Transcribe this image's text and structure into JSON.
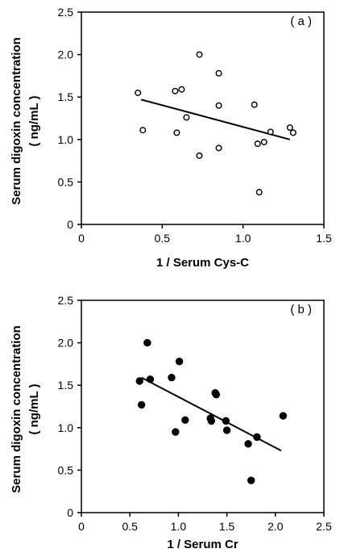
{
  "chart_data": [
    {
      "type": "scatter",
      "panel_label": "( a )",
      "xlabel": "1 / Serum Cys-C",
      "ylabel_line1": "Serum digoxin concentration",
      "ylabel_line2": "( ng/mL )",
      "xlim": [
        0,
        1.5
      ],
      "ylim": [
        0,
        2.5
      ],
      "xticks": [
        "0",
        "0.5",
        "1.0",
        "1.5"
      ],
      "yticks": [
        "0",
        "0.5",
        "1.0",
        "1.5",
        "2.0",
        "2.5"
      ],
      "marker": "open-circle",
      "points": [
        {
          "x": 0.35,
          "y": 1.55
        },
        {
          "x": 0.38,
          "y": 1.11
        },
        {
          "x": 0.58,
          "y": 1.57
        },
        {
          "x": 0.59,
          "y": 1.08
        },
        {
          "x": 0.62,
          "y": 1.59
        },
        {
          "x": 0.65,
          "y": 1.26
        },
        {
          "x": 0.73,
          "y": 2.0
        },
        {
          "x": 0.73,
          "y": 0.81
        },
        {
          "x": 0.85,
          "y": 1.78
        },
        {
          "x": 0.85,
          "y": 1.4
        },
        {
          "x": 0.85,
          "y": 0.9
        },
        {
          "x": 1.07,
          "y": 1.41
        },
        {
          "x": 1.09,
          "y": 0.95
        },
        {
          "x": 1.1,
          "y": 0.38
        },
        {
          "x": 1.13,
          "y": 0.97
        },
        {
          "x": 1.17,
          "y": 1.09
        },
        {
          "x": 1.29,
          "y": 1.14
        },
        {
          "x": 1.31,
          "y": 1.08
        }
      ],
      "fit_line": [
        {
          "x": 0.37,
          "y": 1.47
        },
        {
          "x": 1.29,
          "y": 1.0
        }
      ]
    },
    {
      "type": "scatter",
      "panel_label": "( b )",
      "xlabel": "1 / Serum Cr",
      "ylabel_line1": "Serum digoxin concentration",
      "ylabel_line2": "( ng/mL )",
      "xlim": [
        0,
        2.5
      ],
      "ylim": [
        0,
        2.5
      ],
      "xticks": [
        "0",
        "0.5",
        "1.0",
        "1.5",
        "2.0",
        "2.5"
      ],
      "yticks": [
        "0",
        "0.5",
        "1.0",
        "1.5",
        "2.0",
        "2.5"
      ],
      "marker": "filled-circle",
      "points": [
        {
          "x": 0.6,
          "y": 1.55
        },
        {
          "x": 0.62,
          "y": 1.27
        },
        {
          "x": 0.68,
          "y": 2.0
        },
        {
          "x": 0.71,
          "y": 1.57
        },
        {
          "x": 0.93,
          "y": 1.59
        },
        {
          "x": 0.97,
          "y": 0.95
        },
        {
          "x": 1.01,
          "y": 1.78
        },
        {
          "x": 1.07,
          "y": 1.09
        },
        {
          "x": 1.33,
          "y": 1.11
        },
        {
          "x": 1.34,
          "y": 1.08
        },
        {
          "x": 1.38,
          "y": 1.41
        },
        {
          "x": 1.39,
          "y": 1.39
        },
        {
          "x": 1.49,
          "y": 1.08
        },
        {
          "x": 1.5,
          "y": 0.97
        },
        {
          "x": 1.72,
          "y": 0.81
        },
        {
          "x": 1.75,
          "y": 0.38
        },
        {
          "x": 1.81,
          "y": 0.89
        },
        {
          "x": 2.08,
          "y": 1.14
        }
      ],
      "fit_line": [
        {
          "x": 0.62,
          "y": 1.59
        },
        {
          "x": 2.06,
          "y": 0.73
        }
      ]
    }
  ]
}
